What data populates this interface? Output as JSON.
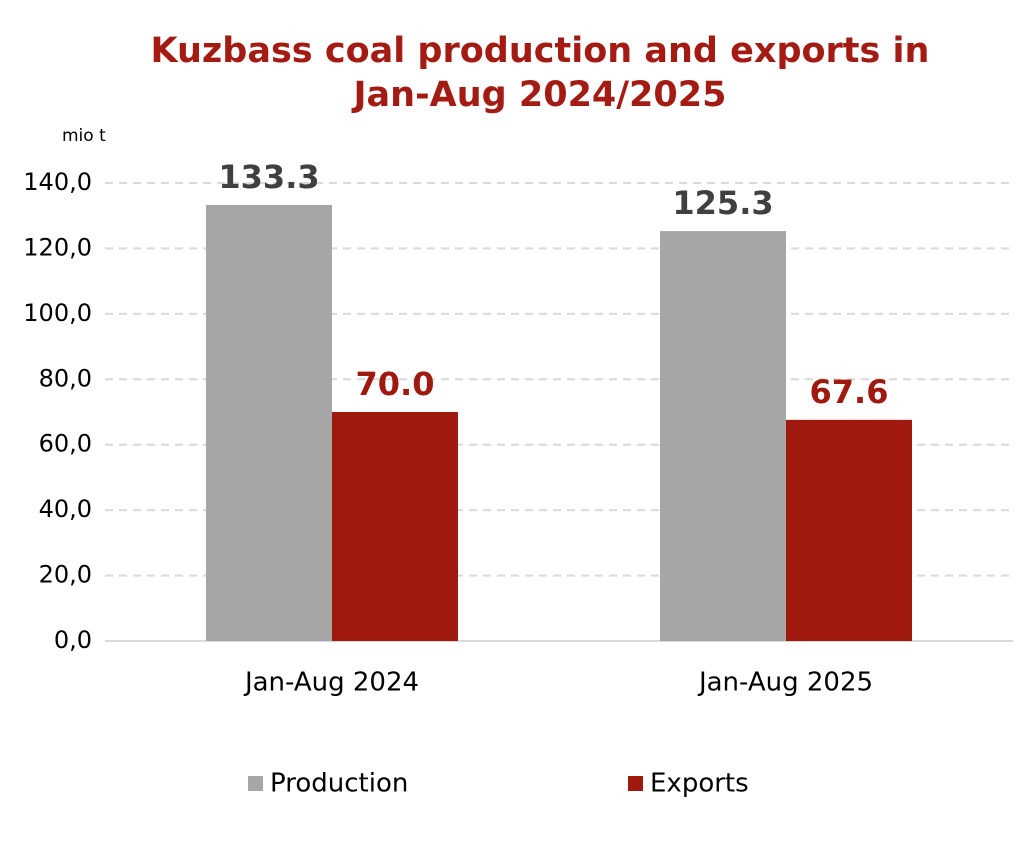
{
  "chart_data": {
    "type": "bar",
    "title": [
      "Kuzbass coal production and exports in",
      "Jan-Aug 2024/2025"
    ],
    "y_label": "mio t",
    "categories": [
      "Jan-Aug 2024",
      "Jan-Aug 2025"
    ],
    "series": [
      {
        "name": "Production",
        "color": "#a6a6a6",
        "label_color": "#404040",
        "values": [
          133.3,
          125.3
        ],
        "value_labels": [
          "133.3",
          "125.3"
        ]
      },
      {
        "name": "Exports",
        "color": "#a0190f",
        "label_color": "#a0190f",
        "values": [
          70.0,
          67.6
        ],
        "value_labels": [
          "70.0",
          "67.6"
        ]
      }
    ],
    "ylim": [
      0,
      140
    ],
    "yticks": [
      {
        "value": 0,
        "label": "0,0"
      },
      {
        "value": 20,
        "label": "20,0"
      },
      {
        "value": 40,
        "label": "40,0"
      },
      {
        "value": 60,
        "label": "60,0"
      },
      {
        "value": 80,
        "label": "80,0"
      },
      {
        "value": 100,
        "label": "100,0"
      },
      {
        "value": 120,
        "label": "120,0"
      },
      {
        "value": 140,
        "label": "140,0"
      }
    ],
    "grid": true,
    "legend": "bottom"
  }
}
